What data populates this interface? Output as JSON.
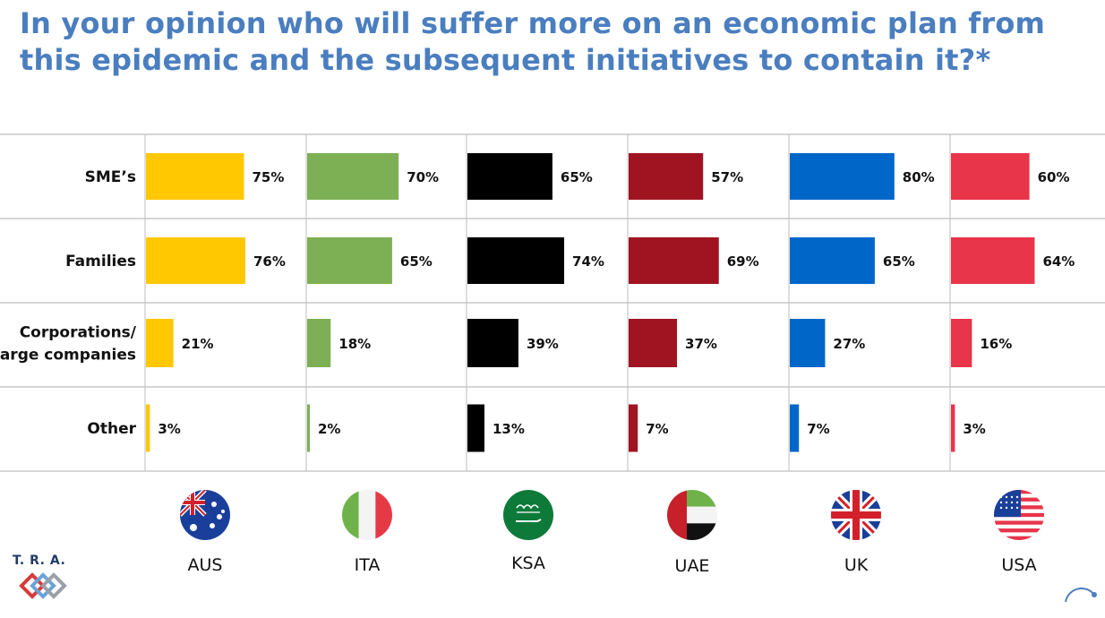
{
  "title": "In your opinion who will suffer more on an economic plan from this epidemic and the subsequent initiatives to contain it?*",
  "logo_text": "T. R. A.",
  "chart_data": {
    "type": "bar",
    "orientation": "horizontal",
    "categories": [
      "SME’s",
      "Families",
      "Corporations/ Large companies",
      "Other"
    ],
    "category_lines": [
      [
        "SME’s"
      ],
      [
        "Families"
      ],
      [
        "Corporations/",
        "Large companies"
      ],
      [
        "Other"
      ]
    ],
    "value_suffix": "%",
    "series": [
      {
        "name": "AUS",
        "color": "#ffc800",
        "values": [
          75,
          76,
          21,
          3
        ]
      },
      {
        "name": "ITA",
        "color": "#7db055",
        "values": [
          70,
          65,
          18,
          2
        ]
      },
      {
        "name": "KSA",
        "color": "#000000",
        "values": [
          65,
          74,
          39,
          13
        ]
      },
      {
        "name": "UAE",
        "color": "#a01422",
        "values": [
          57,
          69,
          37,
          7
        ]
      },
      {
        "name": "UK",
        "color": "#0066c8",
        "values": [
          80,
          65,
          27,
          7
        ]
      },
      {
        "name": "USA",
        "color": "#e8354a",
        "values": [
          60,
          64,
          16,
          3
        ]
      }
    ],
    "flags": [
      "australia-flag-icon",
      "italy-flag-icon",
      "saudi-flag-icon",
      "uae-flag-icon",
      "uk-flag-icon",
      "usa-flag-icon"
    ],
    "grid": true
  }
}
